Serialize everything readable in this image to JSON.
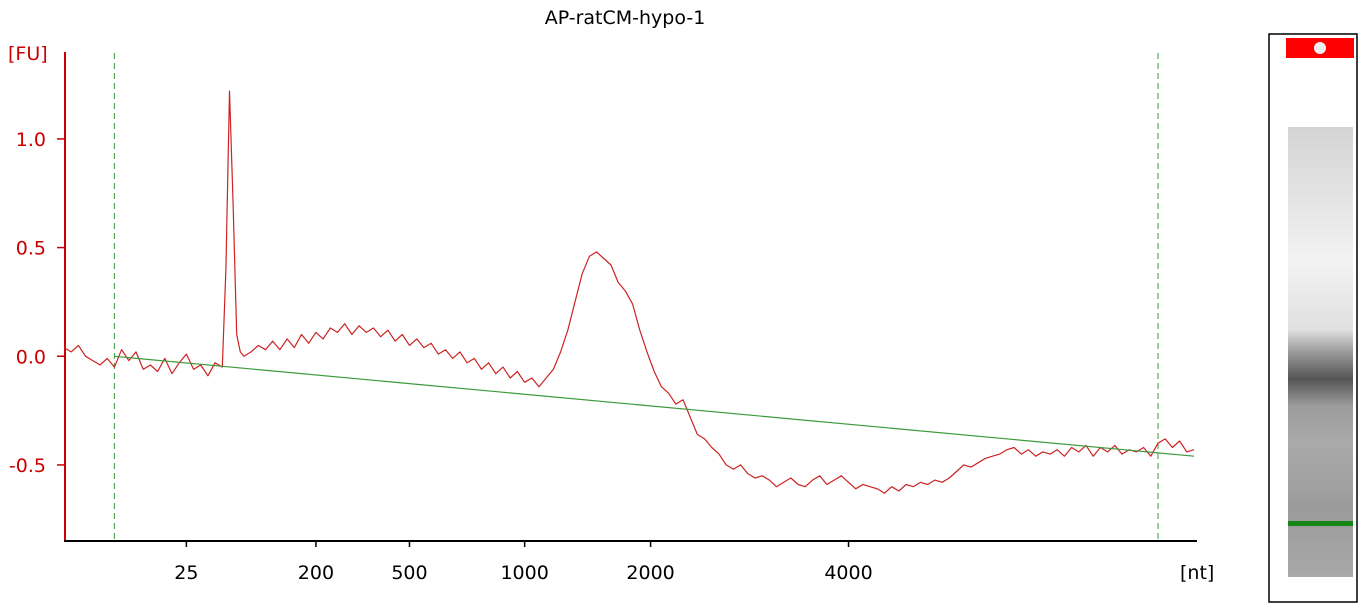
{
  "chart_data": {
    "type": "line",
    "title": "AP-ratCM-hypo-1",
    "y_unit_label": "[FU]",
    "x_unit_label": "[nt]",
    "ylim": [
      -0.85,
      1.4
    ],
    "y_ticks": [
      {
        "value": 1.0,
        "label": "1.0"
      },
      {
        "value": 0.5,
        "label": "0.5"
      },
      {
        "value": 0.0,
        "label": "0.0"
      },
      {
        "value": -0.5,
        "label": "-0.5"
      }
    ],
    "x_ticks": [
      "25",
      "200",
      "500",
      "1000",
      "2000",
      "4000"
    ],
    "series": [
      {
        "color": "#cc2222",
        "points": [
          [
            0,
            0.04
          ],
          [
            2,
            0.02
          ],
          [
            4,
            0.05
          ],
          [
            6,
            0.0
          ],
          [
            8,
            -0.02
          ],
          [
            10,
            -0.04
          ],
          [
            12,
            -0.01
          ],
          [
            14,
            -0.05
          ],
          [
            16,
            0.03
          ],
          [
            18,
            -0.02
          ],
          [
            20,
            0.02
          ],
          [
            22,
            -0.06
          ],
          [
            24,
            -0.04
          ],
          [
            26,
            -0.07
          ],
          [
            28,
            -0.01
          ],
          [
            30,
            -0.08
          ],
          [
            32,
            -0.03
          ],
          [
            34,
            0.01
          ],
          [
            36,
            -0.06
          ],
          [
            38,
            -0.04
          ],
          [
            40,
            -0.09
          ],
          [
            42,
            -0.03
          ],
          [
            44,
            -0.05
          ],
          [
            45,
            0.4
          ],
          [
            46,
            1.22
          ],
          [
            47,
            0.7
          ],
          [
            48,
            0.1
          ],
          [
            49,
            0.02
          ],
          [
            50,
            0.0
          ],
          [
            52,
            0.02
          ],
          [
            54,
            0.05
          ],
          [
            56,
            0.03
          ],
          [
            58,
            0.07
          ],
          [
            60,
            0.03
          ],
          [
            62,
            0.08
          ],
          [
            64,
            0.04
          ],
          [
            66,
            0.1
          ],
          [
            68,
            0.06
          ],
          [
            70,
            0.11
          ],
          [
            72,
            0.08
          ],
          [
            74,
            0.13
          ],
          [
            76,
            0.11
          ],
          [
            78,
            0.15
          ],
          [
            80,
            0.1
          ],
          [
            82,
            0.14
          ],
          [
            84,
            0.11
          ],
          [
            86,
            0.13
          ],
          [
            88,
            0.09
          ],
          [
            90,
            0.12
          ],
          [
            92,
            0.07
          ],
          [
            94,
            0.1
          ],
          [
            96,
            0.05
          ],
          [
            98,
            0.08
          ],
          [
            100,
            0.04
          ],
          [
            102,
            0.06
          ],
          [
            104,
            0.01
          ],
          [
            106,
            0.03
          ],
          [
            108,
            -0.01
          ],
          [
            110,
            0.02
          ],
          [
            112,
            -0.03
          ],
          [
            114,
            -0.01
          ],
          [
            116,
            -0.06
          ],
          [
            118,
            -0.03
          ],
          [
            120,
            -0.08
          ],
          [
            122,
            -0.05
          ],
          [
            124,
            -0.1
          ],
          [
            126,
            -0.07
          ],
          [
            128,
            -0.12
          ],
          [
            130,
            -0.1
          ],
          [
            132,
            -0.14
          ],
          [
            134,
            -0.1
          ],
          [
            136,
            -0.06
          ],
          [
            138,
            0.02
          ],
          [
            140,
            0.12
          ],
          [
            142,
            0.25
          ],
          [
            144,
            0.38
          ],
          [
            146,
            0.46
          ],
          [
            148,
            0.48
          ],
          [
            150,
            0.45
          ],
          [
            152,
            0.42
          ],
          [
            154,
            0.34
          ],
          [
            156,
            0.3
          ],
          [
            158,
            0.24
          ],
          [
            160,
            0.12
          ],
          [
            162,
            0.02
          ],
          [
            164,
            -0.07
          ],
          [
            166,
            -0.14
          ],
          [
            168,
            -0.17
          ],
          [
            170,
            -0.22
          ],
          [
            172,
            -0.2
          ],
          [
            174,
            -0.28
          ],
          [
            176,
            -0.36
          ],
          [
            178,
            -0.38
          ],
          [
            180,
            -0.42
          ],
          [
            182,
            -0.45
          ],
          [
            184,
            -0.5
          ],
          [
            186,
            -0.52
          ],
          [
            188,
            -0.5
          ],
          [
            190,
            -0.54
          ],
          [
            192,
            -0.56
          ],
          [
            194,
            -0.55
          ],
          [
            196,
            -0.57
          ],
          [
            198,
            -0.6
          ],
          [
            200,
            -0.58
          ],
          [
            202,
            -0.56
          ],
          [
            204,
            -0.59
          ],
          [
            206,
            -0.6
          ],
          [
            208,
            -0.57
          ],
          [
            210,
            -0.55
          ],
          [
            212,
            -0.59
          ],
          [
            214,
            -0.57
          ],
          [
            216,
            -0.55
          ],
          [
            218,
            -0.58
          ],
          [
            220,
            -0.61
          ],
          [
            222,
            -0.59
          ],
          [
            224,
            -0.6
          ],
          [
            226,
            -0.61
          ],
          [
            228,
            -0.63
          ],
          [
            230,
            -0.6
          ],
          [
            232,
            -0.62
          ],
          [
            234,
            -0.59
          ],
          [
            236,
            -0.6
          ],
          [
            238,
            -0.58
          ],
          [
            240,
            -0.59
          ],
          [
            242,
            -0.57
          ],
          [
            244,
            -0.58
          ],
          [
            246,
            -0.56
          ],
          [
            248,
            -0.53
          ],
          [
            250,
            -0.5
          ],
          [
            252,
            -0.51
          ],
          [
            254,
            -0.49
          ],
          [
            256,
            -0.47
          ],
          [
            258,
            -0.46
          ],
          [
            260,
            -0.45
          ],
          [
            262,
            -0.43
          ],
          [
            264,
            -0.42
          ],
          [
            266,
            -0.45
          ],
          [
            268,
            -0.43
          ],
          [
            270,
            -0.46
          ],
          [
            272,
            -0.44
          ],
          [
            274,
            -0.45
          ],
          [
            276,
            -0.43
          ],
          [
            278,
            -0.46
          ],
          [
            280,
            -0.42
          ],
          [
            282,
            -0.44
          ],
          [
            284,
            -0.41
          ],
          [
            286,
            -0.46
          ],
          [
            288,
            -0.42
          ],
          [
            290,
            -0.44
          ],
          [
            292,
            -0.41
          ],
          [
            294,
            -0.45
          ],
          [
            296,
            -0.43
          ],
          [
            298,
            -0.44
          ],
          [
            300,
            -0.42
          ],
          [
            302,
            -0.46
          ],
          [
            304,
            -0.4
          ],
          [
            306,
            -0.38
          ],
          [
            308,
            -0.42
          ],
          [
            310,
            -0.39
          ],
          [
            312,
            -0.44
          ],
          [
            314,
            -0.43
          ]
        ]
      },
      {
        "color": "#3a9a3a",
        "points": [
          [
            14,
            0.0
          ],
          [
            314,
            -0.46
          ]
        ]
      }
    ],
    "markers": [
      14,
      304
    ],
    "x_tick_positions": [
      34,
      70,
      96,
      128,
      163,
      218
    ],
    "gel": {
      "top_band_color": "#ff0000",
      "marker_line_color": "#138613"
    }
  }
}
